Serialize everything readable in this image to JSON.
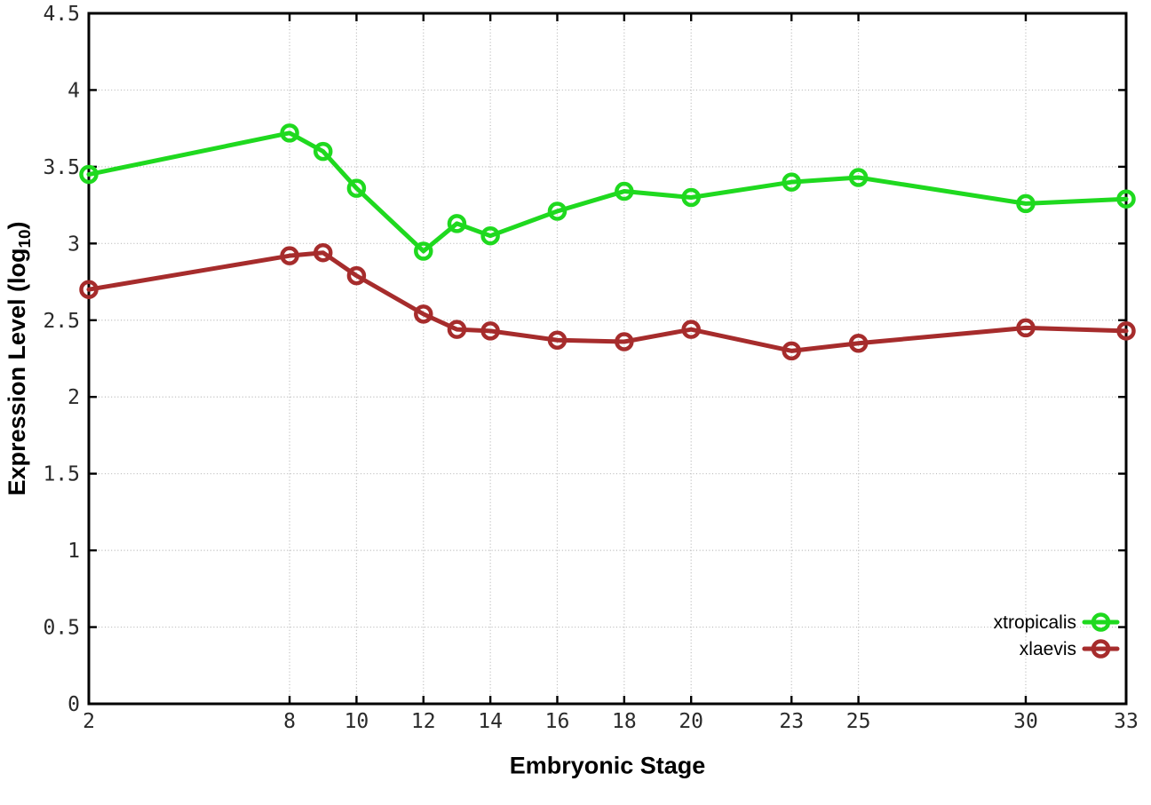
{
  "chart_data": {
    "type": "line",
    "title": "",
    "xlabel": "Embryonic Stage",
    "ylabel": "Expression Level (log10)",
    "ylabel_parts": {
      "prefix": "Expression Level (log",
      "sub": "10",
      "suffix": ")"
    },
    "x": [
      2,
      8,
      9,
      10,
      12,
      13,
      14,
      16,
      18,
      20,
      23,
      25,
      30,
      33
    ],
    "series": [
      {
        "name": "xtropicalis",
        "color": "#1fd91f",
        "values": [
          3.45,
          3.72,
          3.6,
          3.36,
          2.95,
          3.13,
          3.05,
          3.21,
          3.34,
          3.3,
          3.4,
          3.43,
          3.26,
          3.29
        ]
      },
      {
        "name": "xlaevis",
        "color": "#a62c2c",
        "values": [
          2.7,
          2.92,
          2.94,
          2.79,
          2.54,
          2.44,
          2.43,
          2.37,
          2.36,
          2.44,
          2.3,
          2.35,
          2.45,
          2.43
        ]
      }
    ],
    "x_ticks": [
      2,
      8,
      10,
      12,
      14,
      16,
      18,
      20,
      23,
      25,
      30,
      33
    ],
    "x_tick_labels": [
      "2",
      "8",
      "10",
      "12",
      "14",
      "16",
      "18",
      "20",
      "23",
      "25",
      "30",
      "33"
    ],
    "y_ticks": [
      0,
      0.5,
      1,
      1.5,
      2,
      2.5,
      3,
      3.5,
      4,
      4.5
    ],
    "y_tick_labels": [
      "0",
      "0.5",
      "1",
      "1.5",
      "2",
      "2.5",
      "3",
      "3.5",
      "4",
      "4.5"
    ],
    "xlim": [
      2,
      33
    ],
    "ylim": [
      0,
      4.5
    ],
    "grid": true,
    "legend_position": "bottom-right",
    "colors": {
      "grid": "#b8b8b8",
      "border": "#000000",
      "tick_text": "#2a2a2a"
    }
  }
}
